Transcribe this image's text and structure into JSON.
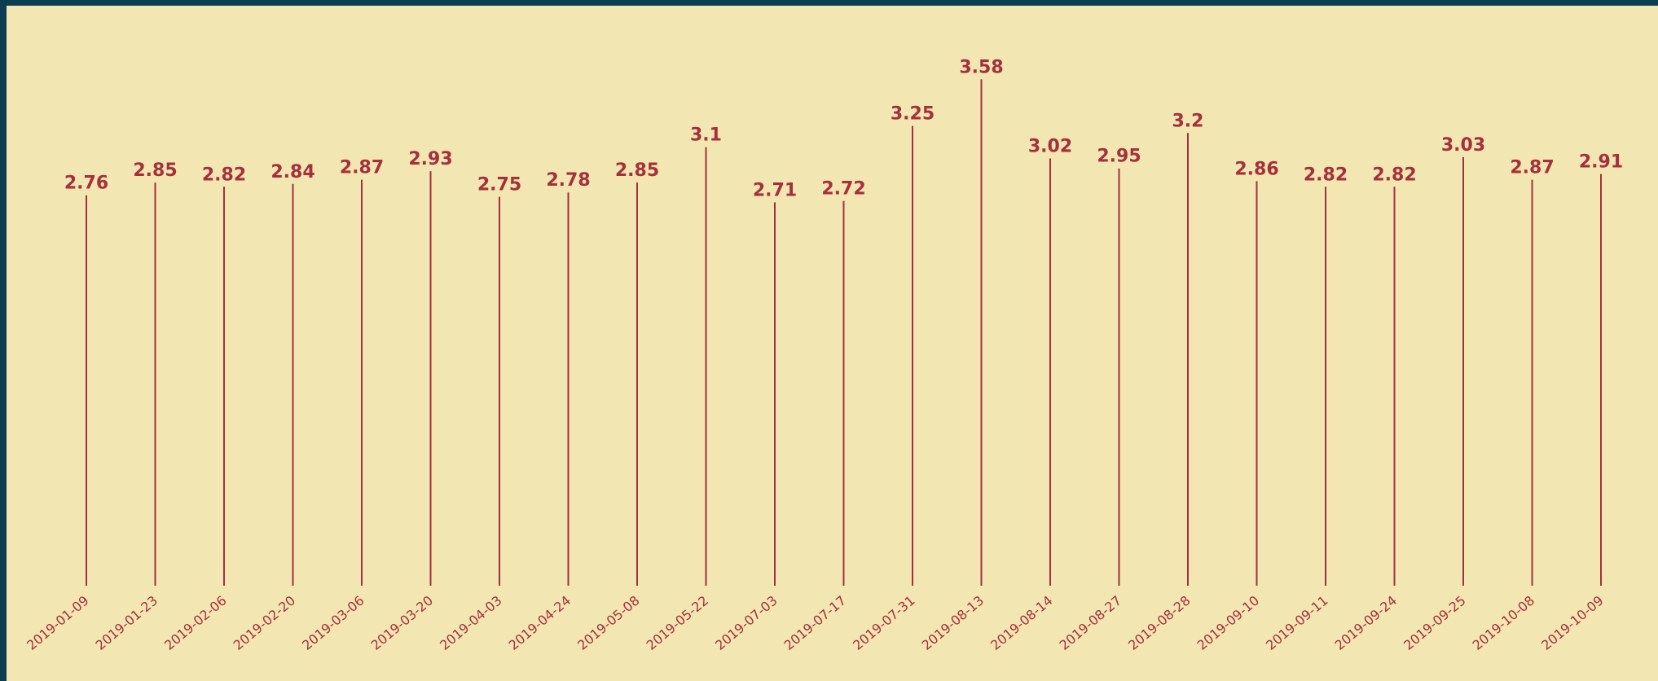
{
  "chart_data": {
    "type": "bar",
    "subtype": "stem",
    "title": "",
    "xlabel": "",
    "ylabel": "",
    "grid": false,
    "legend": "none",
    "categories": [
      "2019-01-09",
      "2019-01-23",
      "2019-02-06",
      "2019-02-20",
      "2019-03-06",
      "2019-03-20",
      "2019-04-03",
      "2019-04-24",
      "2019-05-08",
      "2019-05-22",
      "2019-07-03",
      "2019-07-17",
      "2019-07-31",
      "2019-08-13",
      "2019-08-14",
      "2019-08-27",
      "2019-08-28",
      "2019-09-10",
      "2019-09-11",
      "2019-09-24",
      "2019-09-25",
      "2019-10-08",
      "2019-10-09"
    ],
    "values": [
      2.76,
      2.85,
      2.82,
      2.84,
      2.87,
      2.93,
      2.75,
      2.78,
      2.85,
      3.1,
      2.71,
      2.72,
      3.25,
      3.58,
      3.02,
      2.95,
      3.2,
      2.86,
      2.82,
      2.82,
      3.03,
      2.87,
      2.91
    ],
    "value_labels": [
      "2.76",
      "2.85",
      "2.82",
      "2.84",
      "2.87",
      "2.93",
      "2.75",
      "2.78",
      "2.85",
      "3.1",
      "2.71",
      "2.72",
      "3.25",
      "3.58",
      "3.02",
      "2.95",
      "3.2",
      "2.86",
      "2.82",
      "2.82",
      "3.03",
      "2.87",
      "2.91"
    ],
    "ylim": [
      0,
      4.1
    ],
    "colors": {
      "background": "#f2e6b2",
      "frame": "#0e3d52",
      "marks": "#a6303a"
    }
  }
}
